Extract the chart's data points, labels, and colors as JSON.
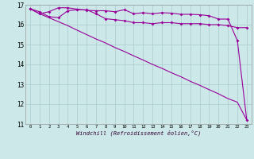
{
  "xlabel": "Windchill (Refroidissement éolien,°C)",
  "x": [
    0,
    1,
    2,
    3,
    4,
    5,
    6,
    7,
    8,
    9,
    10,
    11,
    12,
    13,
    14,
    15,
    16,
    17,
    18,
    19,
    20,
    21,
    22,
    23
  ],
  "line1": [
    16.8,
    16.65,
    16.4,
    16.35,
    16.7,
    16.75,
    16.75,
    16.55,
    16.3,
    16.25,
    16.2,
    16.1,
    16.1,
    16.05,
    16.1,
    16.1,
    16.05,
    16.05,
    16.05,
    16.0,
    16.0,
    15.95,
    15.85,
    15.85
  ],
  "line2": [
    16.8,
    16.55,
    16.65,
    16.85,
    16.85,
    16.78,
    16.72,
    16.7,
    16.7,
    16.65,
    16.75,
    16.55,
    16.6,
    16.55,
    16.6,
    16.58,
    16.52,
    16.52,
    16.5,
    16.45,
    16.28,
    16.28,
    15.2,
    11.2
  ],
  "line3": [
    16.8,
    16.55,
    16.35,
    16.15,
    15.95,
    15.72,
    15.5,
    15.28,
    15.08,
    14.85,
    14.65,
    14.43,
    14.22,
    14.0,
    13.8,
    13.58,
    13.38,
    13.15,
    12.95,
    12.73,
    12.52,
    12.28,
    12.1,
    11.2
  ],
  "line_color": "#990099",
  "bg_color": "#cce8e8",
  "grid_color": "#a8cccc",
  "ylim": [
    11,
    17
  ],
  "yticks": [
    11,
    12,
    13,
    14,
    15,
    16,
    17
  ],
  "xticks": [
    0,
    1,
    2,
    3,
    4,
    5,
    6,
    7,
    8,
    9,
    10,
    11,
    12,
    13,
    14,
    15,
    16,
    17,
    18,
    19,
    20,
    21,
    22,
    23
  ]
}
